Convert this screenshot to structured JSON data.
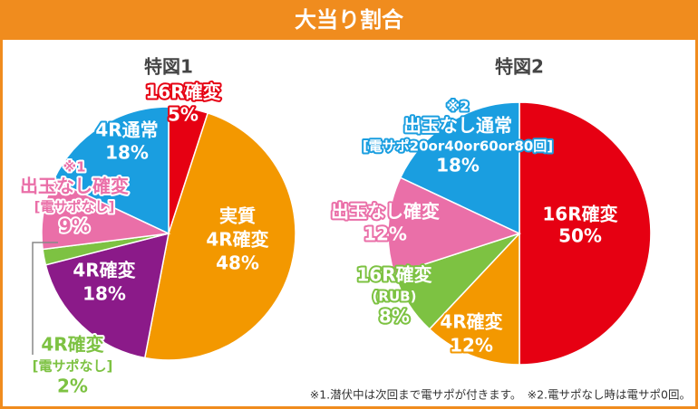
{
  "title": "大当り割合",
  "chart_data": [
    {
      "type": "pie",
      "title": "特図1",
      "categories": [
        [
          "16R確変"
        ],
        [
          "実質",
          "4R確変"
        ],
        [
          "4R確変"
        ],
        [
          "4R確変",
          "[電サポなし]"
        ],
        [
          "※1",
          "出玉なし確変",
          "[電サポなし]"
        ],
        [
          "4R通常"
        ]
      ],
      "values": [
        5,
        48,
        18,
        2,
        9,
        18
      ],
      "value_labels": [
        "5%",
        "48%",
        "18%",
        "2%",
        "9%",
        "18%"
      ],
      "colors": [
        "#e60012",
        "#f39800",
        "#8b1a89",
        "#7dc242",
        "#ea6fa8",
        "#1a9ee0"
      ]
    },
    {
      "type": "pie",
      "title": "特図2",
      "categories": [
        [
          "16R確変"
        ],
        [
          "4R確変"
        ],
        [
          "16R確変",
          "(RUB)"
        ],
        [
          "出玉なし確変"
        ],
        [
          "※2",
          "出玉なし通常",
          "[電サポ20or40or60or80回]"
        ]
      ],
      "values": [
        50,
        12,
        8,
        12,
        18
      ],
      "value_labels": [
        "50%",
        "12%",
        "8%",
        "12%",
        "18%"
      ],
      "colors": [
        "#e60012",
        "#f39800",
        "#7dc242",
        "#ea6fa8",
        "#1a9ee0"
      ]
    }
  ],
  "footnote": "※1.潜伏中は次回まで電サポが付きます。　※2.電サポなし時は電サポ0回。"
}
